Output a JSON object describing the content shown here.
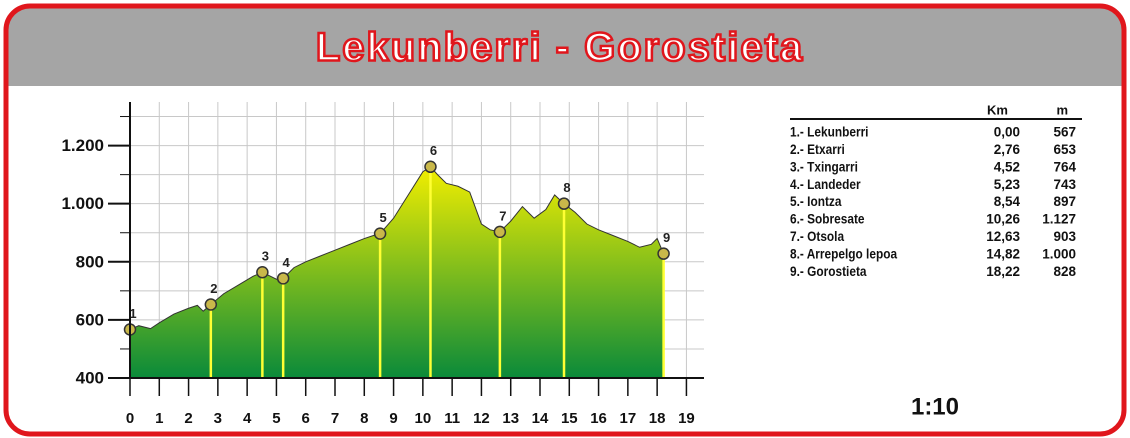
{
  "chart_data": {
    "type": "area",
    "title": "Lekunberri - Gorostieta",
    "x": [
      0,
      0.3,
      0.7,
      1.0,
      1.5,
      2.0,
      2.3,
      2.5,
      2.76,
      3.2,
      3.7,
      4.2,
      4.52,
      4.8,
      5.0,
      5.23,
      5.6,
      6.0,
      6.5,
      7.0,
      7.5,
      8.0,
      8.3,
      8.54,
      9.0,
      9.5,
      10.0,
      10.26,
      10.5,
      10.8,
      11.2,
      11.6,
      12.0,
      12.3,
      12.63,
      13.0,
      13.4,
      13.8,
      14.2,
      14.5,
      14.82,
      15.2,
      15.6,
      16.0,
      16.5,
      17.0,
      17.4,
      17.8,
      18.0,
      18.22
    ],
    "values": [
      567,
      580,
      570,
      590,
      620,
      640,
      650,
      630,
      653,
      690,
      720,
      750,
      764,
      750,
      740,
      743,
      780,
      800,
      820,
      840,
      860,
      880,
      890,
      897,
      950,
      1030,
      1110,
      1127,
      1100,
      1070,
      1060,
      1040,
      930,
      910,
      903,
      940,
      990,
      950,
      980,
      1030,
      1000,
      970,
      930,
      910,
      890,
      870,
      850,
      860,
      880,
      828
    ],
    "waypoints": {
      "labels": [
        "1",
        "2",
        "3",
        "4",
        "5",
        "6",
        "7",
        "8",
        "9"
      ],
      "x": [
        0,
        2.76,
        4.52,
        5.23,
        8.54,
        10.26,
        12.63,
        14.82,
        18.22
      ],
      "values": [
        567,
        653,
        764,
        743,
        897,
        1127,
        903,
        1000,
        828
      ]
    },
    "xlim": [
      0,
      19.6
    ],
    "xticks": [
      0,
      1,
      2,
      3,
      4,
      5,
      6,
      7,
      8,
      9,
      10,
      11,
      12,
      13,
      14,
      15,
      16,
      17,
      18,
      19
    ],
    "ylim": [
      400,
      1350
    ],
    "yticks": [
      400,
      600,
      800,
      {
        "value": 1000,
        "label": "1.000"
      },
      {
        "value": 1200,
        "label": "1.200"
      }
    ],
    "ygrid": [
      400,
      500,
      600,
      700,
      800,
      900,
      1000,
      1100,
      1200,
      1300
    ],
    "grid": true,
    "colors": {
      "top": "#f2ee00",
      "bottom": "#0a8a3a",
      "marker": "#c9b84a",
      "drop": "#ffff33"
    }
  },
  "table": {
    "header": [
      "Km",
      "m"
    ],
    "rows": [
      [
        "1.- Lekunberri",
        "0,00",
        "567"
      ],
      [
        "2.- Etxarri",
        "2,76",
        "653"
      ],
      [
        "3.- Txingarri",
        "4,52",
        "764"
      ],
      [
        "4.- Landeder",
        "5,23",
        "743"
      ],
      [
        "5.- Iontza",
        "8,54",
        "897"
      ],
      [
        "6.- Sobresate",
        "10,26",
        "1.127"
      ],
      [
        "7.- Otsola",
        "12,63",
        "903"
      ],
      [
        "8.- Arrepelgo lepoa",
        "14,82",
        "1.000"
      ],
      [
        "9.- Gorostieta",
        "18,22",
        "828"
      ]
    ]
  },
  "scale": "1:10"
}
